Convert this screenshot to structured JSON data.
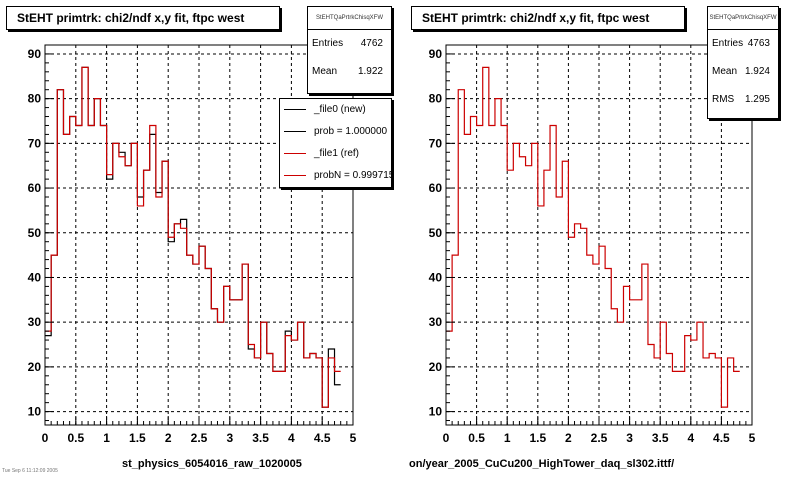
{
  "chart_data": [
    {
      "type": "line",
      "title": "StEHT primtrk: chi2/ndf x,y fit, ftpc west",
      "xlabel": "",
      "ylabel": "",
      "xlim": [
        0,
        5
      ],
      "ylim": [
        7,
        92
      ],
      "x_ticks": [
        "0",
        "0.5",
        "1",
        "1.5",
        "2",
        "2.5",
        "3",
        "3.5",
        "4",
        "4.5",
        "5"
      ],
      "y_ticks": [
        "10",
        "20",
        "30",
        "40",
        "50",
        "60",
        "70",
        "80",
        "90"
      ],
      "grid": true,
      "bin_width": 0.1,
      "series": [
        {
          "name": "_file0 (new)",
          "color": "#000000",
          "values": [
            27,
            45,
            82,
            72,
            76,
            74,
            87,
            74,
            80,
            74,
            62,
            70,
            68,
            65,
            70,
            58,
            64,
            72,
            59,
            66,
            48,
            52,
            53,
            45,
            43,
            47,
            42,
            33,
            30,
            38,
            35,
            35,
            43,
            24,
            22,
            30,
            23,
            19,
            19,
            28,
            26,
            30,
            22,
            23,
            22,
            11,
            24,
            16
          ]
        },
        {
          "name": "_file1 (ref)",
          "color": "#cc0000",
          "values": [
            28,
            45,
            82,
            72,
            76,
            74,
            87,
            74,
            80,
            74,
            63,
            70,
            67,
            65,
            70,
            56,
            64,
            74,
            58,
            66,
            49,
            52,
            51,
            45,
            43,
            47,
            42,
            33,
            30,
            38,
            35,
            35,
            43,
            25,
            22,
            30,
            23,
            19,
            19,
            27,
            26,
            30,
            22,
            23,
            22,
            11,
            22,
            19
          ]
        }
      ],
      "stats": {
        "header": "StEHTQaPrtrkChisqXFW",
        "entries_label": "Entries",
        "entries": "4762",
        "mean_label": "Mean",
        "mean": "1.922"
      },
      "legend": [
        {
          "label": "_file0 (new)",
          "color": "#000000"
        },
        {
          "label": "prob = 1.000000",
          "color": "#000000"
        },
        {
          "label": "_file1 (ref)",
          "color": "#cc0000"
        },
        {
          "label": "probN = 0.999715",
          "color": "#cc0000"
        }
      ],
      "footer": "st_physics_6054016_raw_1020005"
    },
    {
      "type": "line",
      "title": "StEHT primtrk: chi2/ndf x,y fit, ftpc west",
      "xlabel": "",
      "ylabel": "",
      "xlim": [
        0,
        5
      ],
      "ylim": [
        7,
        92
      ],
      "x_ticks": [
        "0",
        "0.5",
        "1",
        "1.5",
        "2",
        "2.5",
        "3",
        "3.5",
        "4",
        "4.5",
        "5"
      ],
      "y_ticks": [
        "10",
        "20",
        "30",
        "40",
        "50",
        "60",
        "70",
        "80",
        "90"
      ],
      "grid": true,
      "bin_width": 0.1,
      "series": [
        {
          "color": "#cc0000",
          "values": [
            28,
            45,
            82,
            72,
            76,
            74,
            87,
            74,
            80,
            74,
            64,
            70,
            67,
            65,
            70,
            56,
            64,
            74,
            58,
            66,
            49,
            52,
            51,
            45,
            43,
            47,
            42,
            33,
            30,
            38,
            35,
            35,
            43,
            25,
            22,
            30,
            23,
            19,
            19,
            27,
            26,
            30,
            22,
            23,
            22,
            11,
            22,
            19
          ]
        }
      ],
      "stats": {
        "header": "StEHTQaPrtrkChisqXFW",
        "entries_label": "Entries",
        "entries": "4763",
        "mean_label": "Mean",
        "mean": "1.924",
        "rms_label": "RMS",
        "rms": "1.295"
      },
      "footer": "on/year_2005_CuCu200_HighTower_daq_sl302.ittf/"
    }
  ],
  "misc": {
    "tiny_text": "Tue Sep 6 11:12:09 2005"
  }
}
